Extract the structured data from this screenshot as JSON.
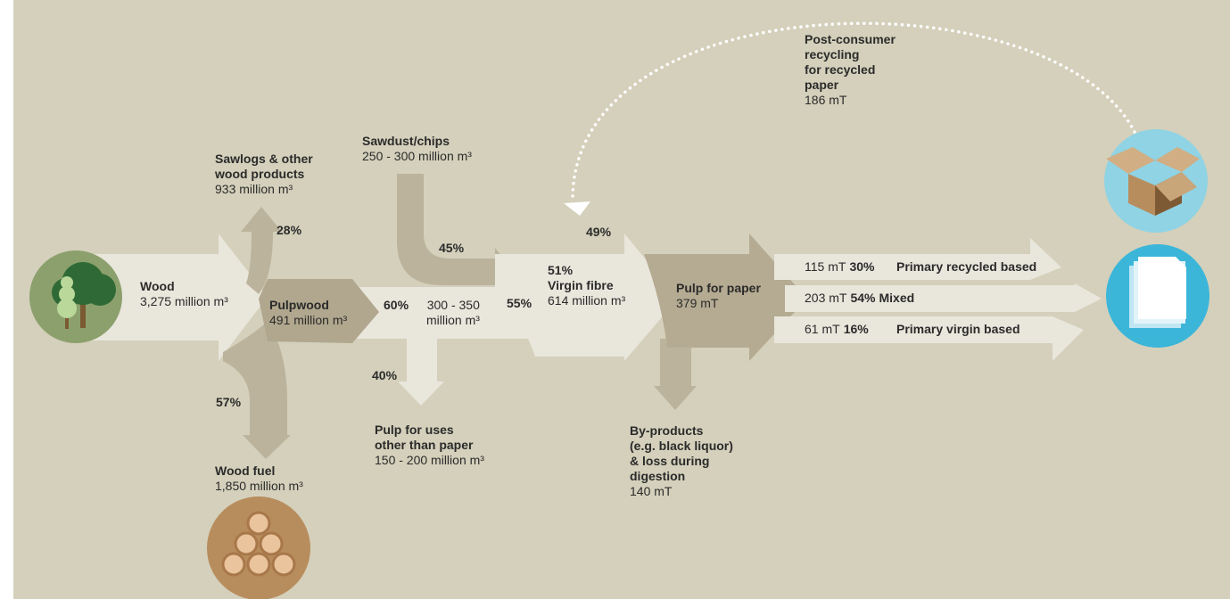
{
  "source": {
    "name": "Wood",
    "value": "3,275 million m³"
  },
  "sawlogs": {
    "name_lines": [
      "Sawlogs & other",
      "wood products"
    ],
    "value": "933 million m³",
    "share": "28%"
  },
  "wood_fuel": {
    "name": "Wood fuel",
    "value": "1,850 million m³",
    "share": "57%"
  },
  "pulpwood": {
    "name": "Pulpwood",
    "value": "491 million m³",
    "share": "60%"
  },
  "sawdust": {
    "name": "Sawdust/chips",
    "value": "250 - 300 million m³",
    "share": "45%"
  },
  "pulp_total": {
    "value_lines": [
      "300 - 350",
      "million m³"
    ],
    "share": "55%"
  },
  "other_pulp": {
    "share": "40%",
    "name_lines": [
      "Pulp for uses",
      "other than paper"
    ],
    "value": "150 - 200 million m³"
  },
  "virgin_fibre": {
    "share": "51%",
    "name": "Virgin fibre",
    "value": "614 million m³"
  },
  "recycled_share": "49%",
  "pulp_for_paper": {
    "name": "Pulp for paper",
    "value": "379 mT"
  },
  "by_products": {
    "name_lines": [
      "By-products",
      "(e.g. black liquor)",
      "& loss during",
      "digestion"
    ],
    "value": "140 mT"
  },
  "recycling": {
    "name_lines": [
      "Post-consumer",
      "recycling",
      "for recycled",
      "paper"
    ],
    "value": "186 mT"
  },
  "outputs": [
    {
      "amount": "115 mT",
      "share": "30%",
      "label": "Primary recycled based"
    },
    {
      "amount": "203 mT",
      "share": "54%",
      "label": "Mixed"
    },
    {
      "amount": "61 mT",
      "share": "16%",
      "label": "Primary virgin based"
    }
  ]
}
